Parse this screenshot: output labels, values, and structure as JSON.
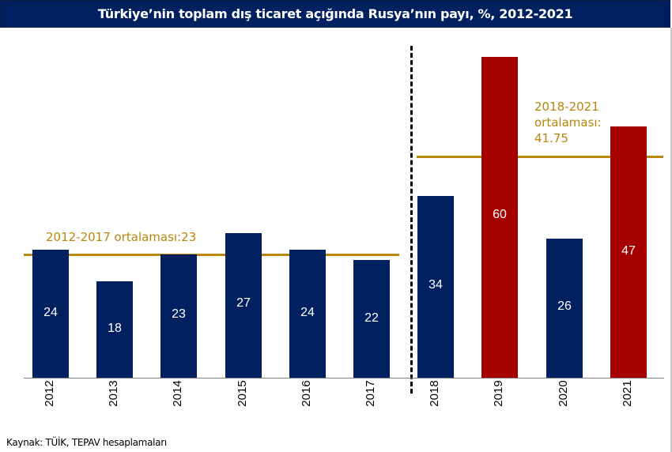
{
  "header": {
    "title": "Türkiye’nin toplam dış ticaret açığında Rusya’nın payı, %, 2012-2021"
  },
  "footer": {
    "source": "Kaynak: TÜİK, TEPAV hesaplamaları"
  },
  "annotations": {
    "avg_2012_2017": "2012-2017 ortalaması:23",
    "avg_2018_2021_line1": "2018-2021",
    "avg_2018_2021_line2": "ortalaması:",
    "avg_2018_2021_line3": "41.75"
  },
  "colors": {
    "navy": "#002060",
    "red": "#A50000",
    "gold": "#B8860B",
    "title_bg": "#002060"
  },
  "chart_data": {
    "type": "bar",
    "title": "Türkiye’nin toplam dış ticaret açığında Rusya’nın payı, %, 2012-2021",
    "xlabel": "",
    "ylabel": "",
    "categories": [
      "2012",
      "2013",
      "2014",
      "2015",
      "2016",
      "2017",
      "2018",
      "2019",
      "2020",
      "2021"
    ],
    "values": [
      24,
      18,
      23,
      27,
      24,
      22,
      34,
      60,
      26,
      47
    ],
    "bar_colors": [
      "#002060",
      "#002060",
      "#002060",
      "#002060",
      "#002060",
      "#002060",
      "#002060",
      "#A50000",
      "#002060",
      "#A50000"
    ],
    "value_labels": [
      "24",
      "18",
      "23",
      "27",
      "24",
      "22",
      "34",
      "60",
      "26",
      "47"
    ],
    "reference_lines": [
      {
        "label": "2012-2017 ortalaması:23",
        "value": 23,
        "range": [
          "2012",
          "2017"
        ]
      },
      {
        "label": "2018-2021 ortalaması: 41.75",
        "value": 41.75,
        "range": [
          "2018",
          "2021"
        ]
      }
    ],
    "divider_between": [
      "2017",
      "2018"
    ],
    "ylim": [
      0,
      60
    ],
    "grid": false,
    "legend": "none",
    "source": "Kaynak: TÜİK, TEPAV hesaplamaları"
  }
}
